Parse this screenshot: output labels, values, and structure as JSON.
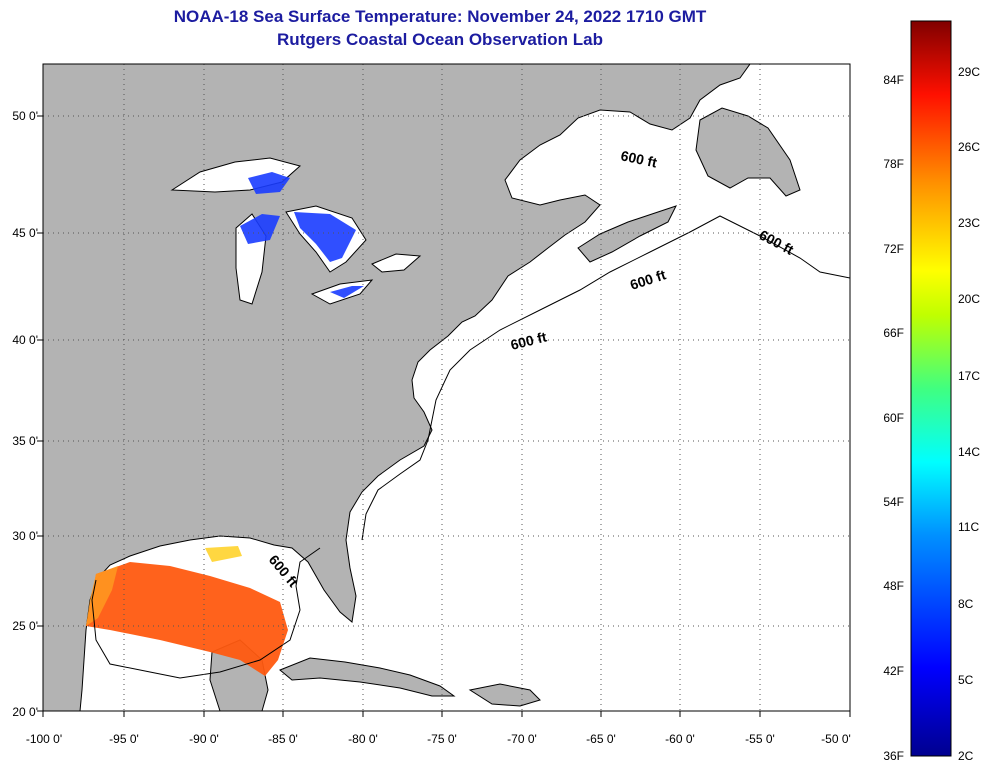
{
  "title": "NOAA-18 Sea Surface Temperature:  November 24, 2022 1710 GMT",
  "subtitle": "Rutgers Coastal Ocean Observation Lab",
  "map": {
    "lon_ticks": [
      "-100 0'",
      "-95 0'",
      "-90 0'",
      "-85 0'",
      "-80 0'",
      "-75 0'",
      "-70 0'",
      "-65 0'",
      "-60 0'",
      "-55 0'",
      "-50 0'"
    ],
    "lat_ticks": [
      "50 0'",
      "45 0'",
      "40 0'",
      "35 0'",
      "30 0'",
      "25 0'",
      "20 0'"
    ],
    "contour_labels": [
      "600 ft",
      "600 ft",
      "600 ft",
      "600 ft",
      "600 ft"
    ],
    "colors": {
      "land": "#b3b3b3",
      "ocean": "#ffffff",
      "grid": "#555555"
    }
  },
  "colorbar": {
    "fahrenheit": [
      "84F",
      "78F",
      "72F",
      "66F",
      "60F",
      "54F",
      "48F",
      "42F",
      "36F"
    ],
    "celsius": [
      "29C",
      "26C",
      "23C",
      "20C",
      "17C",
      "14C",
      "11C",
      "8C",
      "5C",
      "2C"
    ]
  }
}
